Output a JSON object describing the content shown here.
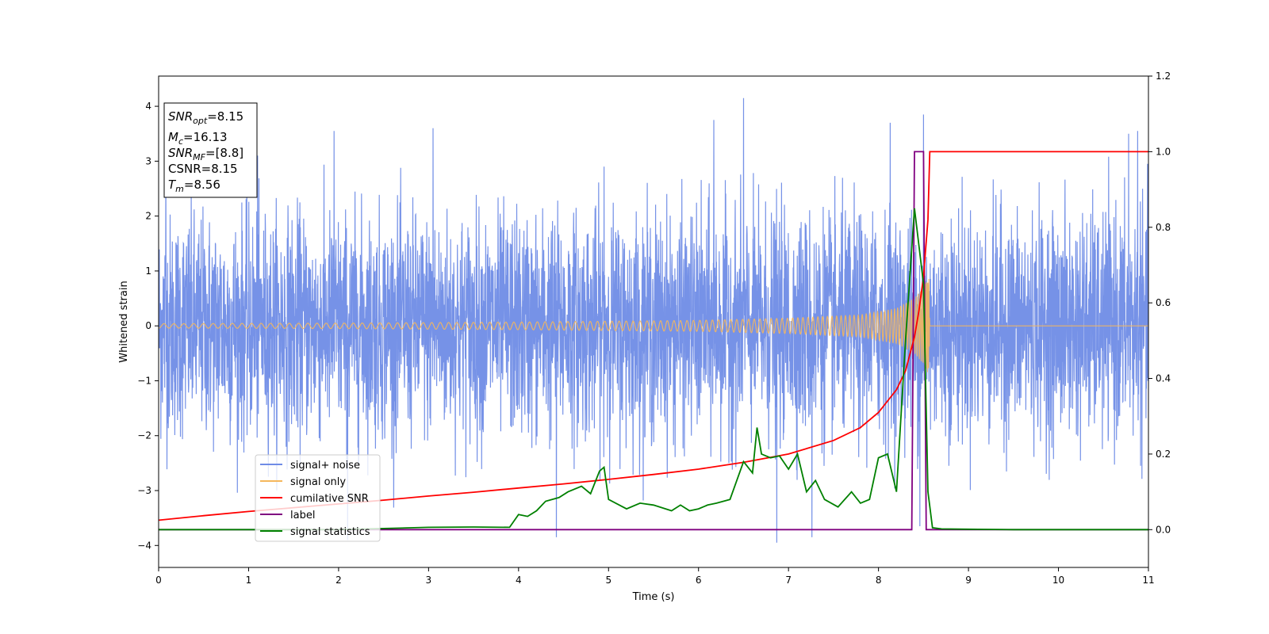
{
  "chart_data": {
    "type": "line",
    "xlabel": "Time (s)",
    "ylabel": "Whitened strain",
    "xlim": [
      0,
      11
    ],
    "ylim": [
      -4.4,
      4.55
    ],
    "ylim_right": [
      -0.1,
      1.2
    ],
    "xticks": [
      "0",
      "1",
      "2",
      "3",
      "4",
      "5",
      "6",
      "7",
      "8",
      "9",
      "10",
      "11"
    ],
    "yticks": [
      "−4",
      "−3",
      "−2",
      "−1",
      "0",
      "1",
      "2",
      "3",
      "4"
    ],
    "yticks_right": [
      "0.0",
      "0.2",
      "0.4",
      "0.6",
      "0.8",
      "1.0",
      "1.2"
    ],
    "colors": {
      "signal_noise": "#6f8ce6",
      "signal_only": "#f5b75c",
      "cumulative_snr": "#ff0000",
      "label": "#800080",
      "signal_statistics": "#008000"
    },
    "legend_position": "lower-left",
    "legend": [
      "signal+ noise",
      "signal only",
      "cumilative SNR",
      "label",
      "signal statistics"
    ],
    "annotation": {
      "snr_opt": "=8.15",
      "mc": "=16.13",
      "snr_mf": "=[8.8]",
      "csnr": "CSNR=8.15",
      "tm": "=8.56"
    },
    "series": [
      {
        "name": "signal+ noise",
        "axis": "left",
        "description_values": "noise band roughly between -2.5 and 2.5 with peaks up to 4.2",
        "peaks": [
          [
            0.08,
            3.1
          ],
          [
            1.1,
            3.1
          ],
          [
            1.95,
            3.55
          ],
          [
            2.1,
            -3.9
          ],
          [
            3.05,
            3.6
          ],
          [
            4.42,
            -3.85
          ],
          [
            4.95,
            2.9
          ],
          [
            6.17,
            3.75
          ],
          [
            6.5,
            4.15
          ],
          [
            6.87,
            -3.95
          ],
          [
            7.26,
            -3.85
          ],
          [
            8.13,
            3.7
          ],
          [
            8.5,
            3.85
          ],
          [
            8.46,
            -3.65
          ],
          [
            10.78,
            3.5
          ],
          [
            10.88,
            3.55
          ]
        ]
      },
      {
        "name": "signal only",
        "axis": "left",
        "envelope": [
          [
            0,
            0.04
          ],
          [
            2,
            0.05
          ],
          [
            4,
            0.07
          ],
          [
            6,
            0.1
          ],
          [
            7,
            0.14
          ],
          [
            7.8,
            0.2
          ],
          [
            8.2,
            0.32
          ],
          [
            8.4,
            0.5
          ],
          [
            8.5,
            0.7
          ],
          [
            8.56,
            0.9
          ],
          [
            8.57,
            0.0
          ],
          [
            11,
            0.0
          ]
        ]
      },
      {
        "name": "cumilative SNR",
        "axis": "right",
        "x": [
          0,
          0.5,
          1,
          1.5,
          2,
          2.5,
          3,
          3.5,
          4,
          4.5,
          5,
          5.5,
          6,
          6.5,
          7,
          7.5,
          7.8,
          8.0,
          8.2,
          8.3,
          8.4,
          8.45,
          8.5,
          8.55,
          8.57,
          11
        ],
        "y": [
          0.025,
          0.037,
          0.048,
          0.058,
          0.068,
          0.078,
          0.089,
          0.099,
          0.11,
          0.121,
          0.133,
          0.146,
          0.16,
          0.178,
          0.2,
          0.236,
          0.27,
          0.31,
          0.37,
          0.42,
          0.51,
          0.58,
          0.67,
          0.82,
          1.0,
          1.0
        ]
      },
      {
        "name": "label",
        "axis": "right",
        "x": [
          0,
          8.37,
          8.4,
          8.48,
          8.5,
          8.53,
          11
        ],
        "y": [
          0,
          0,
          1.0,
          1.0,
          1.0,
          0,
          0
        ]
      },
      {
        "name": "signal statistics",
        "axis": "right",
        "x": [
          0,
          1,
          2,
          2.5,
          3,
          3.5,
          3.9,
          4.0,
          4.1,
          4.2,
          4.3,
          4.45,
          4.55,
          4.7,
          4.8,
          4.9,
          4.95,
          5.0,
          5.2,
          5.35,
          5.5,
          5.7,
          5.8,
          5.9,
          6.0,
          6.1,
          6.2,
          6.35,
          6.5,
          6.6,
          6.65,
          6.7,
          6.8,
          6.9,
          7.0,
          7.1,
          7.2,
          7.3,
          7.4,
          7.55,
          7.7,
          7.8,
          7.9,
          8.0,
          8.1,
          8.2,
          8.3,
          8.4,
          8.5,
          8.55,
          8.6,
          8.7,
          9.0,
          9.5,
          11
        ],
        "y": [
          0,
          0,
          0,
          0.003,
          0.006,
          0.007,
          0.006,
          0.04,
          0.035,
          0.05,
          0.075,
          0.085,
          0.1,
          0.115,
          0.095,
          0.155,
          0.165,
          0.08,
          0.055,
          0.07,
          0.065,
          0.05,
          0.065,
          0.05,
          0.055,
          0.065,
          0.07,
          0.08,
          0.18,
          0.15,
          0.27,
          0.2,
          0.19,
          0.195,
          0.16,
          0.2,
          0.1,
          0.13,
          0.08,
          0.06,
          0.1,
          0.07,
          0.08,
          0.19,
          0.2,
          0.1,
          0.5,
          0.85,
          0.65,
          0.1,
          0.005,
          0.002,
          0.001,
          0,
          0
        ]
      }
    ]
  }
}
